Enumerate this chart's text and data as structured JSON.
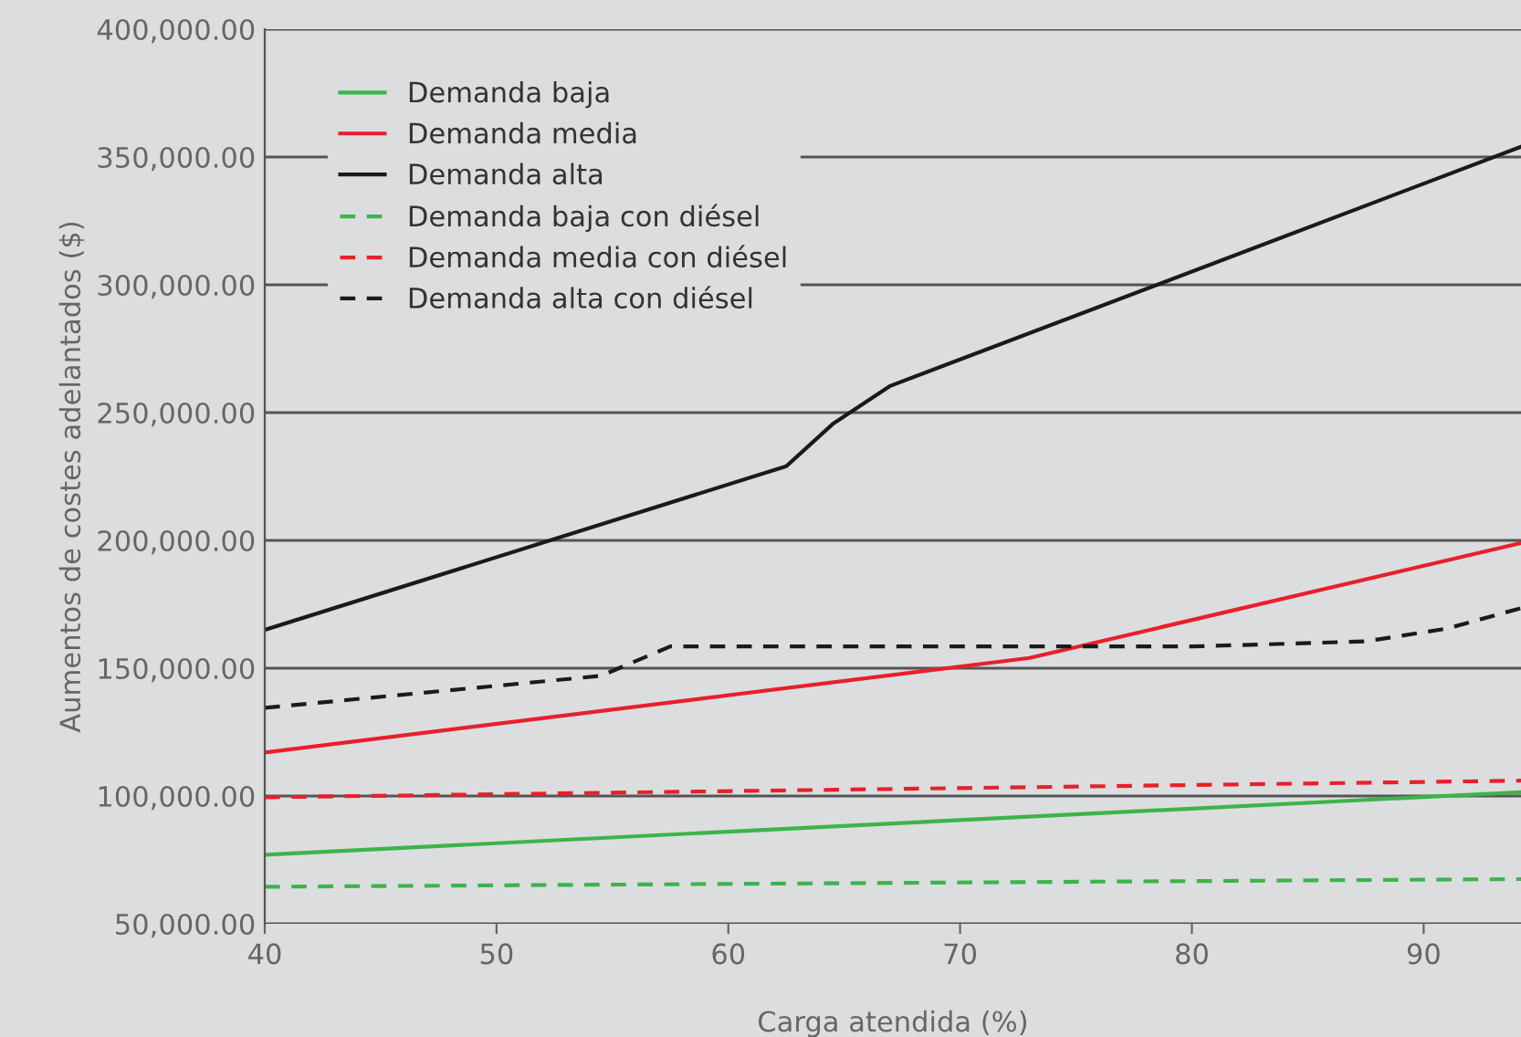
{
  "chart_data": {
    "type": "line",
    "xlabel": "Carga atendida (%)",
    "ylabel": "Aumentos de costes adelantados ($)",
    "xlim": [
      40,
      94.2
    ],
    "xticks": [
      40,
      50,
      60,
      70,
      80,
      90
    ],
    "ylim": [
      50000,
      400000
    ],
    "yticks": [
      {
        "value": 50000,
        "label": "50,000.00"
      },
      {
        "value": 100000,
        "label": "100,000.00"
      },
      {
        "value": 150000,
        "label": "150,000.00"
      },
      {
        "value": 200000,
        "label": "200,000.00"
      },
      {
        "value": 250000,
        "label": "250,000.00"
      },
      {
        "value": 300000,
        "label": "300,000.00"
      },
      {
        "value": 350000,
        "label": "350,000.00"
      },
      {
        "value": 400000,
        "label": "400,000.00"
      }
    ],
    "grid": "y",
    "legend": "top left",
    "series": [
      {
        "name": "Demanda baja",
        "color": "#3cb44b",
        "line_style": "solid",
        "x": [
          40,
          94.2
        ],
        "values": [
          77000,
          101500
        ]
      },
      {
        "name": "Demanda media",
        "color": "#e8202a",
        "line_style": "solid",
        "x": [
          40,
          73,
          94.2
        ],
        "values": [
          117000,
          154000,
          199000
        ]
      },
      {
        "name": "Demanda alta",
        "color": "#1a1a1a",
        "line_style": "solid",
        "x": [
          40,
          62.5,
          64.5,
          67,
          94.2
        ],
        "values": [
          165000,
          229000,
          245500,
          260500,
          354000
        ]
      },
      {
        "name": "Demanda baja con diésel",
        "color": "#3cb44b",
        "line_style": "dashed",
        "x": [
          40,
          94.2
        ],
        "values": [
          64500,
          67500
        ]
      },
      {
        "name": "Demanda media con diésel",
        "color": "#e8202a",
        "line_style": "dashed",
        "x": [
          40,
          94.2
        ],
        "values": [
          99500,
          106000
        ]
      },
      {
        "name": "Demanda alta con diésel",
        "color": "#1a1a1a",
        "line_style": "dashed",
        "x": [
          40,
          54.5,
          57.5,
          80,
          87.5,
          91,
          94.2
        ],
        "values": [
          134500,
          147000,
          158500,
          158500,
          160500,
          165500,
          173500
        ]
      }
    ]
  }
}
